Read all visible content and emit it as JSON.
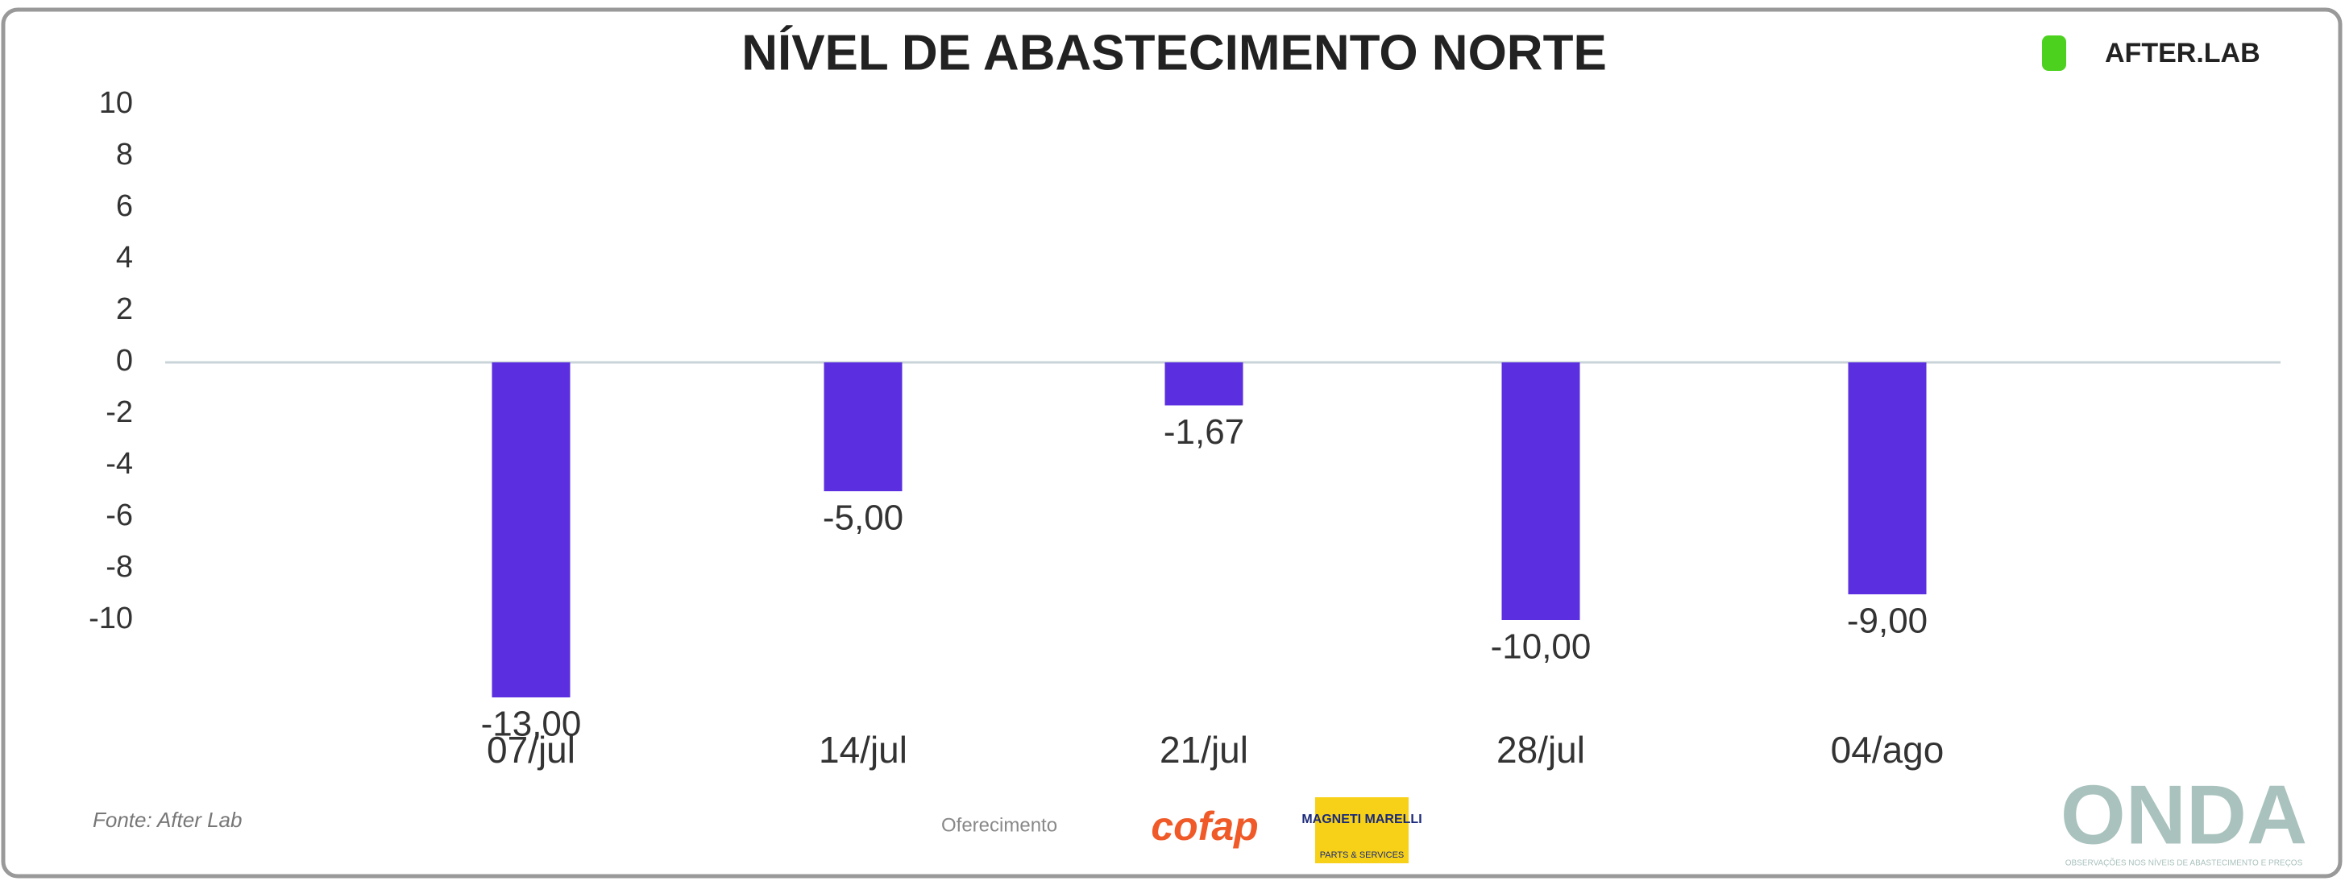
{
  "chart_data": {
    "type": "bar",
    "title": "NÍVEL DE ABASTECIMENTO NORTE",
    "categories": [
      "07/jul",
      "14/jul",
      "21/jul",
      "28/jul",
      "04/ago"
    ],
    "values": [
      -13,
      -5,
      -1.67,
      -10,
      -9
    ],
    "value_labels": [
      "-13,00",
      "-5,00",
      "-1,67",
      "-10,00",
      "-9,00"
    ],
    "color": "#5b2ee0",
    "ylim": [
      -10,
      10
    ],
    "yticks": [
      -10,
      -8,
      -6,
      -4,
      -2,
      0,
      2,
      4,
      6,
      8,
      10
    ],
    "grid": false
  },
  "header": {
    "logo": "AFTER.LAB"
  },
  "footer": {
    "source": "Fonte: After Lab",
    "sponsor": "Oferecimento",
    "cofap": "cofap",
    "marelli": "MAGNETI MARELLI",
    "marelli_sub": "PARTS & SERVICES",
    "onda": "ONDA",
    "onda_sub": "OBSERVAÇÕES NOS NÍVEIS DE ABASTECIMENTO E PREÇOS"
  }
}
